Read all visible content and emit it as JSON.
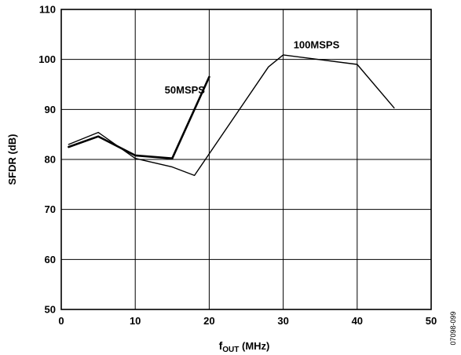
{
  "chart_data": {
    "type": "line",
    "xlabel_main": "f",
    "xlabel_sub": "OUT",
    "xlabel_unit": " (MHz)",
    "ylabel": "SFDR (dB)",
    "xlim": [
      0,
      50
    ],
    "ylim": [
      50,
      110
    ],
    "x_ticks": [
      0,
      10,
      20,
      30,
      40,
      50
    ],
    "y_ticks": [
      50,
      60,
      70,
      80,
      90,
      100,
      110
    ],
    "grid": true,
    "figure_id": "07098-099",
    "series": [
      {
        "name": "50MSPS",
        "stroke_width": 2.6,
        "points": [
          [
            1,
            82.5
          ],
          [
            5,
            84.6
          ],
          [
            10,
            80.8
          ],
          [
            15,
            80.2
          ],
          [
            20,
            96.5
          ]
        ]
      },
      {
        "name": "100MSPS",
        "stroke_width": 1.4,
        "points": [
          [
            1,
            83.0
          ],
          [
            5,
            85.4
          ],
          [
            10,
            80.2
          ],
          [
            15,
            78.5
          ],
          [
            18,
            76.8
          ],
          [
            28,
            98.5
          ],
          [
            30,
            100.9
          ],
          [
            40,
            99.0
          ],
          [
            45,
            90.3
          ]
        ]
      }
    ],
    "annotations": [
      {
        "text": "50MSPS",
        "x": 16.7,
        "y": 93.2
      },
      {
        "text": "100MSPS",
        "x": 34.5,
        "y": 102.2
      }
    ]
  }
}
